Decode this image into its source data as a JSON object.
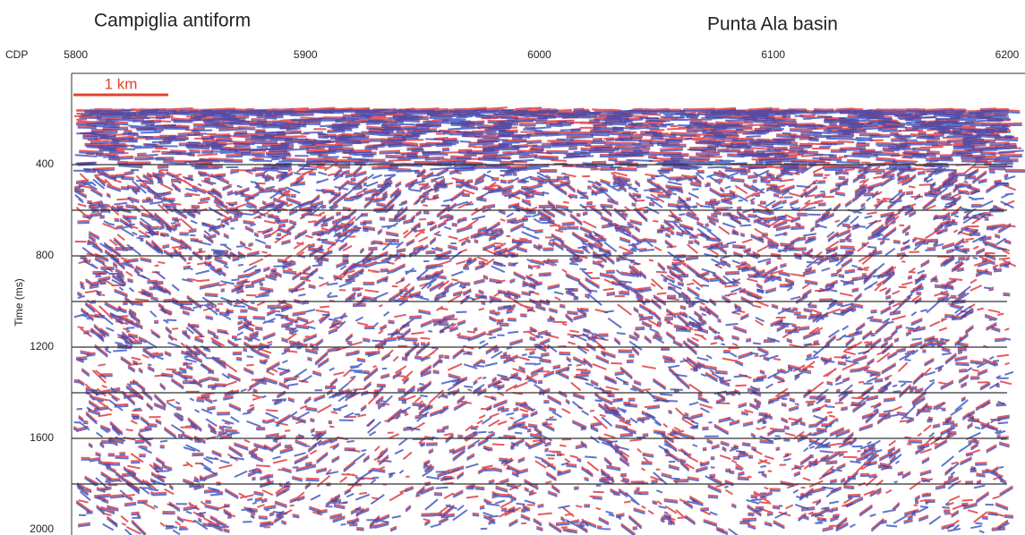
{
  "chart_data": {
    "type": "seismic",
    "annotations": [
      "Campiglia antiform",
      "Punta Ala basin"
    ],
    "xlabel": "CDP",
    "ylabel": "Time (ms)",
    "scale_bar": "1 km",
    "xlim": [
      5800,
      6200
    ],
    "xticks": [
      5800,
      5900,
      6000,
      6100,
      6200
    ],
    "ylim": [
      0,
      2000
    ],
    "yticks": [
      400,
      800,
      1200,
      1600,
      2000
    ],
    "gridlines": [
      400,
      600,
      800,
      1000,
      1200,
      1400,
      1600,
      1800
    ],
    "colors": [
      "#d8262c",
      "#2b46b8"
    ]
  }
}
